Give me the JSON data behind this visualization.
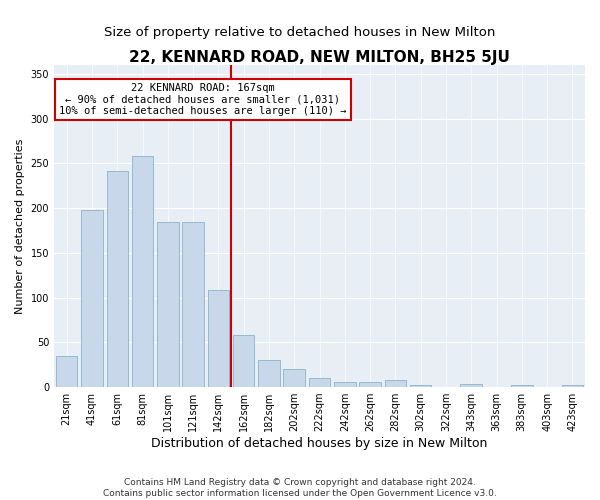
{
  "title": "22, KENNARD ROAD, NEW MILTON, BH25 5JU",
  "subtitle": "Size of property relative to detached houses in New Milton",
  "xlabel": "Distribution of detached houses by size in New Milton",
  "ylabel": "Number of detached properties",
  "bar_color": "#c8d8ea",
  "bar_edge_color": "#8ab4cc",
  "background_color": "#e8eef5",
  "categories": [
    "21sqm",
    "41sqm",
    "61sqm",
    "81sqm",
    "101sqm",
    "121sqm",
    "142sqm",
    "162sqm",
    "182sqm",
    "202sqm",
    "222sqm",
    "242sqm",
    "262sqm",
    "282sqm",
    "302sqm",
    "322sqm",
    "343sqm",
    "363sqm",
    "383sqm",
    "403sqm",
    "423sqm"
  ],
  "values": [
    35,
    198,
    242,
    258,
    184,
    184,
    108,
    58,
    30,
    20,
    10,
    6,
    6,
    8,
    2,
    0,
    3,
    0,
    2,
    0,
    2
  ],
  "vline_x": 7.0,
  "vline_color": "#cc0000",
  "annotation_line1": "22 KENNARD ROAD: 167sqm",
  "annotation_line2": "← 90% of detached houses are smaller (1,031)",
  "annotation_line3": "10% of semi-detached houses are larger (110) →",
  "annotation_box_color": "#ffffff",
  "annotation_box_edge": "#cc0000",
  "ylim": [
    0,
    360
  ],
  "yticks": [
    0,
    50,
    100,
    150,
    200,
    250,
    300,
    350
  ],
  "footer": "Contains HM Land Registry data © Crown copyright and database right 2024.\nContains public sector information licensed under the Open Government Licence v3.0.",
  "title_fontsize": 11,
  "subtitle_fontsize": 9.5,
  "xlabel_fontsize": 9,
  "ylabel_fontsize": 8,
  "tick_fontsize": 7,
  "footer_fontsize": 6.5
}
